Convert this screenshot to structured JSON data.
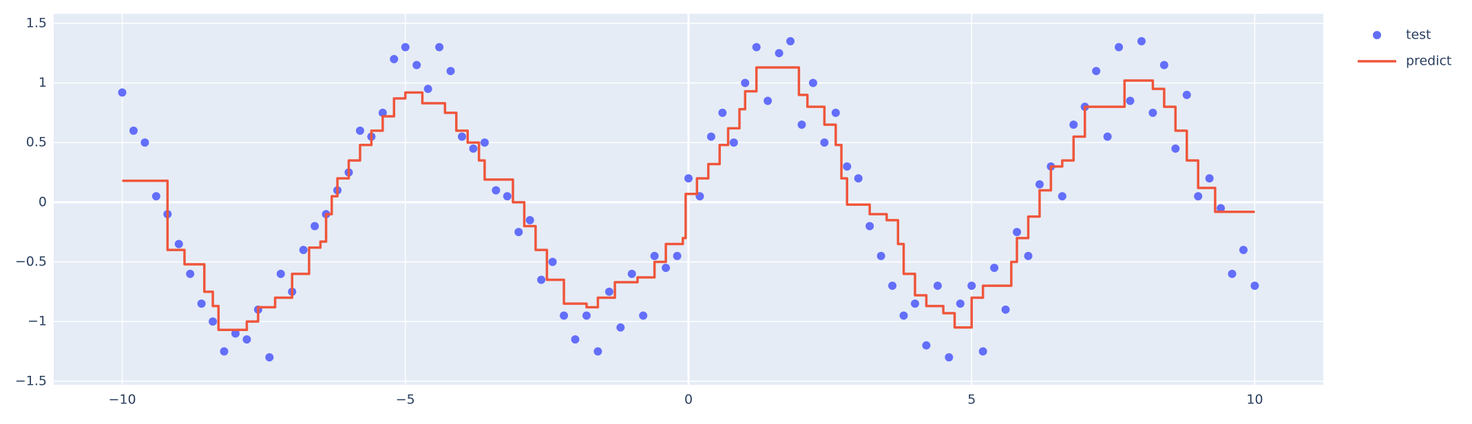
{
  "chart_data": {
    "type": "scatter",
    "xlim": [
      -11.21,
      11.21
    ],
    "ylim": [
      -1.53,
      1.58
    ],
    "xticks": [
      {
        "value": -10,
        "label": "−10"
      },
      {
        "value": -5,
        "label": "−5"
      },
      0,
      5,
      10
    ],
    "yticks": [
      {
        "value": -1.5,
        "label": "−1.5"
      },
      {
        "value": -1,
        "label": "−1"
      },
      {
        "value": -0.5,
        "label": "−0.5"
      },
      0,
      0.5,
      1,
      1.5
    ],
    "grid": true,
    "legend": "right",
    "series": [
      {
        "name": "test",
        "mode": "markers",
        "color": "#636efa",
        "x": [
          -10.0,
          -9.8,
          -9.6,
          -9.4,
          -9.2,
          -9.0,
          -8.8,
          -8.6,
          -8.4,
          -8.2,
          -8.0,
          -7.8,
          -7.6,
          -7.4,
          -7.2,
          -7.0,
          -6.8,
          -6.6,
          -6.4,
          -6.2,
          -6.0,
          -5.8,
          -5.6,
          -5.4,
          -5.2,
          -5.0,
          -4.8,
          -4.6,
          -4.4,
          -4.2,
          -4.0,
          -3.8,
          -3.6,
          -3.4,
          -3.2,
          -3.0,
          -2.8,
          -2.6,
          -2.4,
          -2.2,
          -2.0,
          -1.8,
          -1.6,
          -1.4,
          -1.2,
          -1.0,
          -0.8,
          -0.6,
          -0.4,
          -0.2,
          0.0,
          0.2,
          0.4,
          0.6,
          0.8,
          1.0,
          1.2,
          1.4,
          1.6,
          1.8,
          2.0,
          2.2,
          2.4,
          2.6,
          2.8,
          3.0,
          3.2,
          3.4,
          3.6,
          3.8,
          4.0,
          4.2,
          4.4,
          4.6,
          4.8,
          5.0,
          5.2,
          5.4,
          5.6,
          5.8,
          6.0,
          6.2,
          6.4,
          6.6,
          6.8,
          7.0,
          7.2,
          7.4,
          7.6,
          7.8,
          8.0,
          8.2,
          8.4,
          8.6,
          8.8,
          9.0,
          9.2,
          9.4,
          9.6,
          9.8,
          10.0
        ],
        "values": [
          0.92,
          0.6,
          0.5,
          0.05,
          -0.1,
          -0.35,
          -0.6,
          -0.85,
          -1.0,
          -1.25,
          -1.1,
          -1.15,
          -0.9,
          -1.3,
          -0.6,
          -0.75,
          -0.4,
          -0.2,
          -0.1,
          0.1,
          0.25,
          0.6,
          0.55,
          0.75,
          1.2,
          1.3,
          1.15,
          0.95,
          1.3,
          1.1,
          0.55,
          0.45,
          0.5,
          0.1,
          0.05,
          -0.25,
          -0.15,
          -0.65,
          -0.5,
          -0.95,
          -1.15,
          -0.95,
          -1.25,
          -0.75,
          -1.05,
          -0.6,
          -0.95,
          -0.45,
          -0.55,
          -0.45,
          0.2,
          0.05,
          0.55,
          0.75,
          0.5,
          1.0,
          1.3,
          0.85,
          1.25,
          1.35,
          0.65,
          1.0,
          0.5,
          0.75,
          0.3,
          0.2,
          -0.2,
          -0.45,
          -0.7,
          -0.95,
          -0.85,
          -1.2,
          -0.7,
          -1.3,
          -0.85,
          -0.7,
          -1.25,
          -0.55,
          -0.9,
          -0.25,
          -0.45,
          0.15,
          0.3,
          0.05,
          0.65,
          0.8,
          1.1,
          0.55,
          1.3,
          0.85,
          1.35,
          0.75,
          1.15,
          0.45,
          0.9,
          0.05,
          0.2,
          -0.05,
          -0.6,
          -0.4,
          -0.7
        ]
      },
      {
        "name": "predict",
        "mode": "lines",
        "line_shape": "hv",
        "color": "#ef553b",
        "x": [
          -10,
          -9.2,
          -8.9,
          -8.55,
          -8.4,
          -8.3,
          -7.8,
          -7.6,
          -7.3,
          -7.0,
          -6.7,
          -6.5,
          -6.4,
          -6.3,
          -6.2,
          -6.0,
          -5.8,
          -5.6,
          -5.4,
          -5.2,
          -5.0,
          -4.7,
          -4.3,
          -4.1,
          -3.9,
          -3.7,
          -3.6,
          -3.1,
          -2.9,
          -2.7,
          -2.5,
          -2.2,
          -1.8,
          -1.6,
          -1.3,
          -0.9,
          -0.6,
          -0.4,
          -0.1,
          -0.05,
          0.15,
          0.35,
          0.55,
          0.7,
          0.9,
          1.0,
          1.2,
          1.95,
          2.1,
          2.4,
          2.6,
          2.7,
          2.8,
          3.2,
          3.5,
          3.7,
          3.8,
          4.0,
          4.2,
          4.5,
          4.7,
          5.0,
          5.2,
          5.7,
          5.8,
          6.0,
          6.2,
          6.4,
          6.6,
          6.8,
          7.0,
          7.7,
          8.2,
          8.4,
          8.6,
          8.8,
          9.0,
          9.3,
          10
        ],
        "values": [
          0.18,
          -0.4,
          -0.52,
          -0.75,
          -0.87,
          -1.07,
          -1.0,
          -0.88,
          -0.8,
          -0.6,
          -0.38,
          -0.33,
          -0.1,
          0.05,
          0.2,
          0.35,
          0.48,
          0.6,
          0.72,
          0.87,
          0.92,
          0.83,
          0.75,
          0.6,
          0.5,
          0.35,
          0.19,
          0.0,
          -0.2,
          -0.4,
          -0.65,
          -0.85,
          -0.88,
          -0.8,
          -0.67,
          -0.63,
          -0.5,
          -0.35,
          -0.3,
          0.07,
          0.2,
          0.32,
          0.48,
          0.62,
          0.78,
          0.93,
          1.13,
          0.9,
          0.8,
          0.65,
          0.48,
          0.2,
          -0.02,
          -0.1,
          -0.15,
          -0.35,
          -0.6,
          -0.78,
          -0.87,
          -0.93,
          -1.05,
          -0.8,
          -0.7,
          -0.5,
          -0.3,
          -0.12,
          0.1,
          0.3,
          0.35,
          0.55,
          0.8,
          1.02,
          0.95,
          0.8,
          0.6,
          0.35,
          0.12,
          -0.08,
          -0.08
        ]
      }
    ]
  }
}
